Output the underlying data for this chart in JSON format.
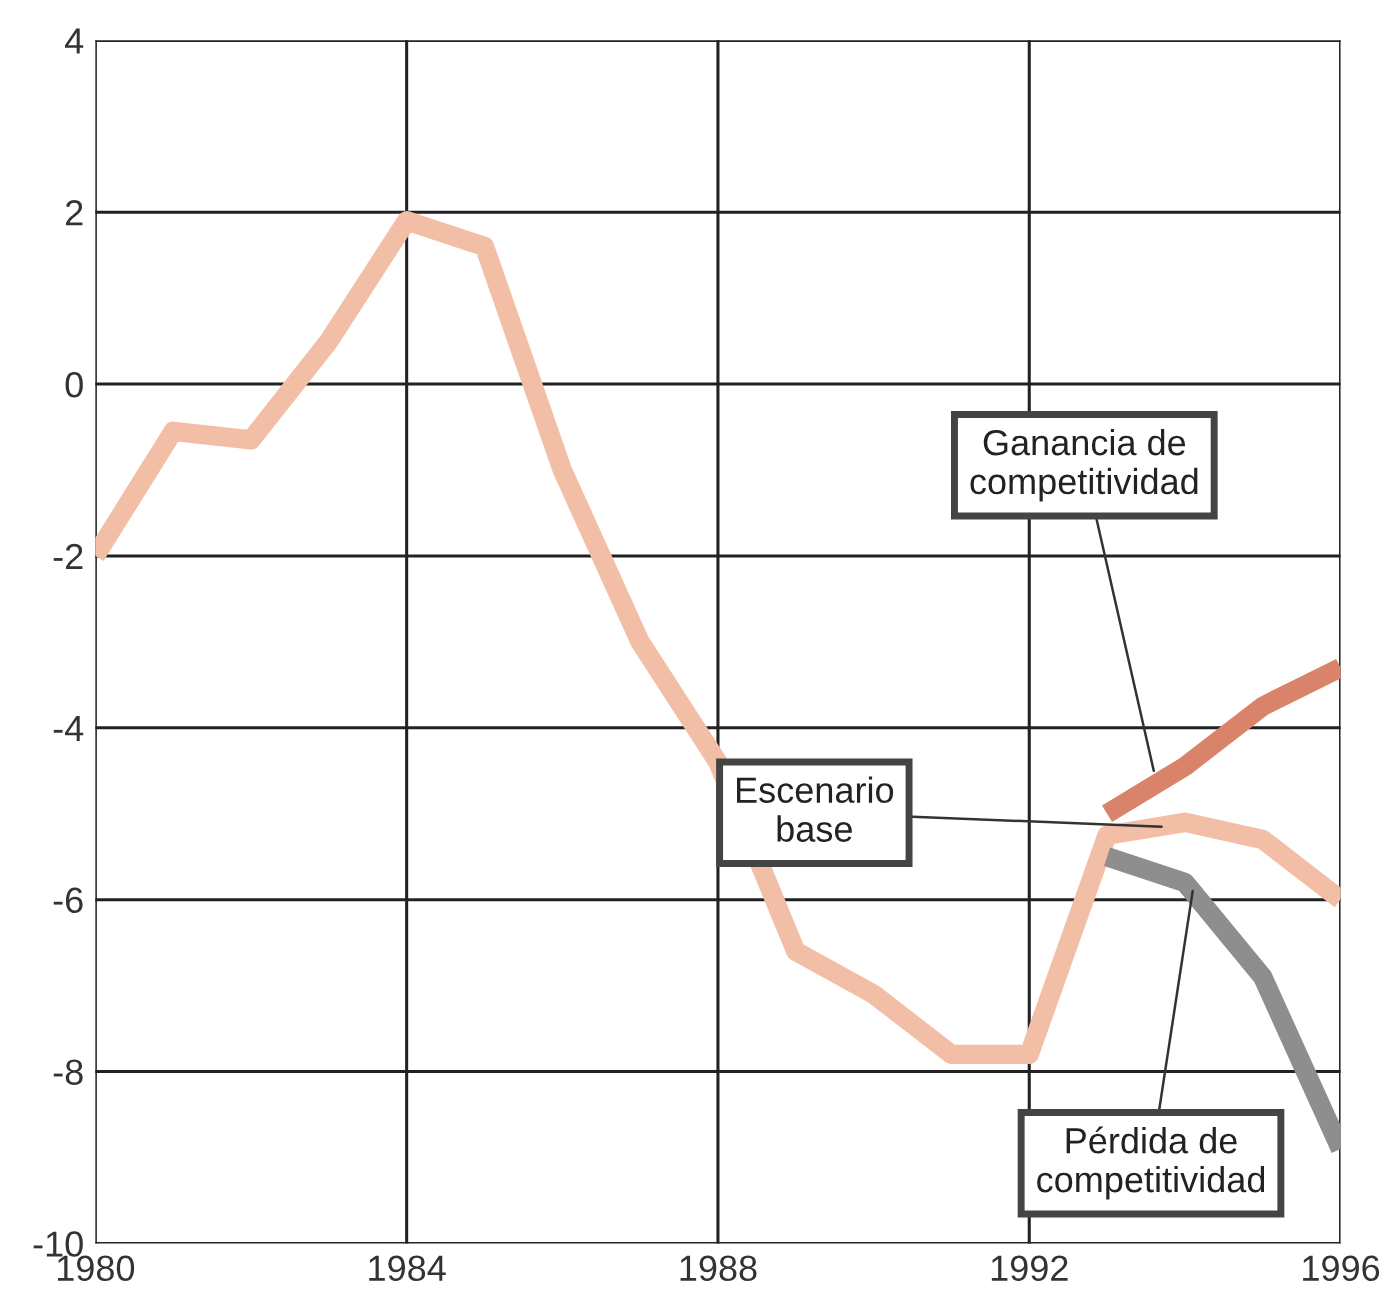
{
  "chart_data": {
    "type": "line",
    "x": [
      1980,
      1981,
      1982,
      1983,
      1984,
      1985,
      1986,
      1987,
      1988,
      1989,
      1990,
      1991,
      1992,
      1993,
      1994,
      1995,
      1996
    ],
    "series": [
      {
        "color": "#f2bfa6",
        "values": [
          -2.0,
          -0.55,
          -0.65,
          0.5,
          1.9,
          1.6,
          -1.0,
          -3.0,
          -4.4,
          -6.6,
          -7.1,
          -7.8,
          -7.8,
          -5.25,
          -5.1,
          -5.3,
          -6.0
        ]
      },
      {
        "color": "#d9836b",
        "x": [
          1993,
          1994,
          1995,
          1996
        ],
        "values": [
          -5.0,
          -4.45,
          -3.75,
          -3.3
        ]
      },
      {
        "color": "#8e8e8e",
        "x": [
          1993,
          1994,
          1995,
          1996
        ],
        "values": [
          -5.5,
          -5.8,
          -6.9,
          -8.9
        ]
      }
    ],
    "xlim": [
      1980,
      1996
    ],
    "xticks": [
      1980,
      1984,
      1988,
      1992,
      1996
    ],
    "ylim": [
      -10,
      4
    ],
    "yticks": [
      -10,
      -8,
      -6,
      -4,
      -2,
      0,
      2,
      4
    ],
    "grid": true,
    "legend": false,
    "marker": "none",
    "line_style": "solid",
    "annotations": [
      {
        "text": "Ganancia de\ncompetitividad",
        "x": 1993.6,
        "y": -4.5
      },
      {
        "text": "Escenario\nbase",
        "x": 1993.7,
        "y": -5.15
      },
      {
        "text": "Pérdida de\ncompetitividad",
        "x": 1994.1,
        "y": -5.9
      }
    ]
  }
}
